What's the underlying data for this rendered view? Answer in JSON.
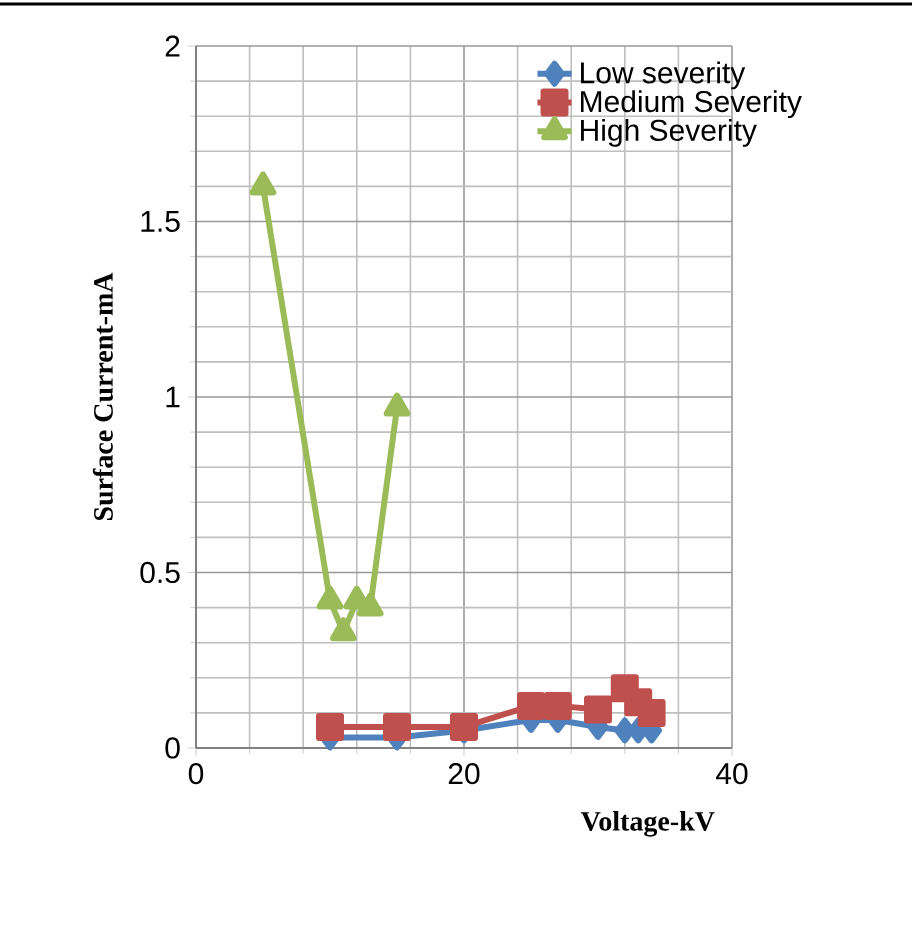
{
  "chart_data": {
    "type": "line",
    "xlabel": "Voltage-kV",
    "ylabel": "Surface Current-mA",
    "xlim": [
      0,
      40
    ],
    "xticks": [
      0,
      20,
      40
    ],
    "ylim": [
      0,
      2
    ],
    "yticks": [
      0,
      0.5,
      1,
      1.5,
      2
    ],
    "grid": true,
    "legend": "top right",
    "line_style": "solid",
    "series": [
      {
        "name": "Low severity",
        "color": "#4f81bd",
        "marker": "diamond",
        "x": [
          10,
          15,
          20,
          25,
          27,
          30,
          32,
          33,
          34
        ],
        "values": [
          0.03,
          0.03,
          0.05,
          0.08,
          0.08,
          0.06,
          0.05,
          0.05,
          0.05
        ]
      },
      {
        "name": "Medium Severity",
        "color": "#c0504d",
        "marker": "square",
        "x": [
          10,
          15,
          20,
          25,
          27,
          30,
          32,
          33,
          34
        ],
        "values": [
          0.06,
          0.06,
          0.06,
          0.12,
          0.12,
          0.11,
          0.17,
          0.13,
          0.1
        ]
      },
      {
        "name": "High Severity",
        "color": "#9bbb59",
        "marker": "triangle",
        "x": [
          5,
          10,
          11,
          12,
          13,
          15
        ],
        "values": [
          1.6,
          0.42,
          0.33,
          0.42,
          0.4,
          0.97
        ]
      }
    ]
  }
}
